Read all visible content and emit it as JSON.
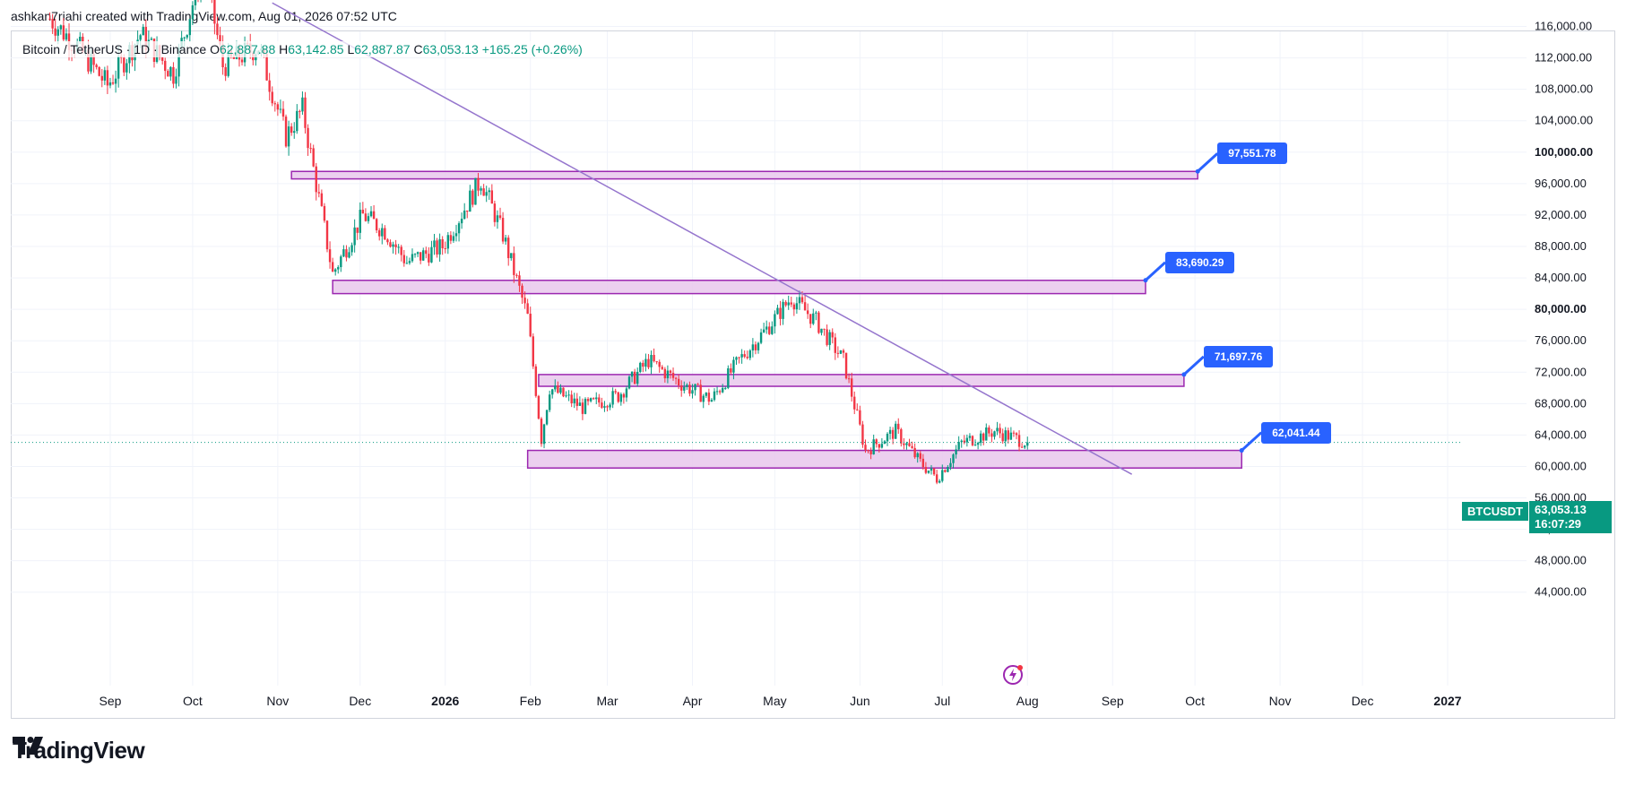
{
  "header": {
    "attribution": "ashkan7riahi created with TradingView.com, Aug 01, 2026 07:52 UTC"
  },
  "symbol": {
    "name": "Bitcoin / TetherUS · 1D · Binance",
    "open_label": "O",
    "open": "62,887.88",
    "high_label": "H",
    "high": "63,142.85",
    "low_label": "L",
    "low": "62,887.87",
    "close_label": "C",
    "close": "63,053.13",
    "change": "+165.25 (+0.26%)"
  },
  "badges": {
    "ticker": "BTCUSDT",
    "last_price": "63,053.13",
    "countdown": "16:07:29"
  },
  "branding": {
    "logo_text": "TradingView"
  },
  "colors": {
    "up": "#089981",
    "down": "#f23645",
    "zone_fill": "#e9c8ec",
    "zone_stroke": "#9c27b0",
    "trendline": "#9575cd",
    "label_bg": "#2962ff"
  },
  "chart_data": {
    "type": "candlestick",
    "y_axis": {
      "ticks": [
        44000,
        48000,
        52000,
        56000,
        60000,
        64000,
        68000,
        72000,
        76000,
        80000,
        84000,
        88000,
        92000,
        96000,
        100000,
        104000,
        108000,
        112000,
        116000
      ],
      "tick_labels": [
        "44,000.00",
        "48,000.00",
        "52,000.00",
        "56,000.00",
        "60,000.00",
        "64,000.00",
        "68,000.00",
        "72,000.00",
        "76,000.00",
        "80,000.00",
        "84,000.00",
        "88,000.00",
        "92,000.00",
        "96,000.00",
        "100,000.00",
        "104,000.00",
        "108,000.00",
        "112,000.00",
        "116,000.00"
      ],
      "bold_labels": [
        "80,000.00",
        "100,000.00"
      ],
      "range": [
        41500,
        118500
      ]
    },
    "x_axis": {
      "labels": [
        "Sep",
        "Oct",
        "Nov",
        "Dec",
        "2026",
        "Feb",
        "Mar",
        "Apr",
        "May",
        "Jun",
        "Jul",
        "Aug",
        "Sep",
        "Oct",
        "Nov",
        "Dec",
        "2027"
      ],
      "bold_labels": [
        "2026",
        "2027"
      ],
      "dates": [
        "2025-09-01",
        "2025-10-01",
        "2025-11-01",
        "2025-12-01",
        "2026-01-01",
        "2026-02-01",
        "2026-03-01",
        "2026-04-01",
        "2026-05-01",
        "2026-06-01",
        "2026-07-01",
        "2026-08-01",
        "2026-09-01",
        "2026-10-01",
        "2026-11-01",
        "2026-12-01",
        "2027-01-01"
      ]
    },
    "price_path": [
      {
        "date": "2025-08-10",
        "price": 117000
      },
      {
        "date": "2025-08-20",
        "price": 113500
      },
      {
        "date": "2025-08-31",
        "price": 108500
      },
      {
        "date": "2025-09-12",
        "price": 115000
      },
      {
        "date": "2025-09-24",
        "price": 110000
      },
      {
        "date": "2025-10-05",
        "price": 124000
      },
      {
        "date": "2025-10-12",
        "price": 111000
      },
      {
        "date": "2025-10-25",
        "price": 113500
      },
      {
        "date": "2025-11-04",
        "price": 102000
      },
      {
        "date": "2025-11-10",
        "price": 105500
      },
      {
        "date": "2025-11-21",
        "price": 84500
      },
      {
        "date": "2025-12-02",
        "price": 92000
      },
      {
        "date": "2025-12-10",
        "price": 90000
      },
      {
        "date": "2025-12-18",
        "price": 86000
      },
      {
        "date": "2025-12-31",
        "price": 88000
      },
      {
        "date": "2026-01-14",
        "price": 96500
      },
      {
        "date": "2026-01-22",
        "price": 89500
      },
      {
        "date": "2026-01-31",
        "price": 79000
      },
      {
        "date": "2026-02-05",
        "price": 63500
      },
      {
        "date": "2026-02-08",
        "price": 70000
      },
      {
        "date": "2026-02-20",
        "price": 67500
      },
      {
        "date": "2026-03-05",
        "price": 69000
      },
      {
        "date": "2026-03-16",
        "price": 73500
      },
      {
        "date": "2026-03-28",
        "price": 70500
      },
      {
        "date": "2026-04-08",
        "price": 68500
      },
      {
        "date": "2026-04-18",
        "price": 73500
      },
      {
        "date": "2026-04-28",
        "price": 77500
      },
      {
        "date": "2026-05-07",
        "price": 81500
      },
      {
        "date": "2026-05-16",
        "price": 78500
      },
      {
        "date": "2026-05-26",
        "price": 73500
      },
      {
        "date": "2026-06-03",
        "price": 62000
      },
      {
        "date": "2026-06-14",
        "price": 64500
      },
      {
        "date": "2026-06-23",
        "price": 60500
      },
      {
        "date": "2026-06-29",
        "price": 58500
      },
      {
        "date": "2026-07-08",
        "price": 63000
      },
      {
        "date": "2026-07-20",
        "price": 64500
      },
      {
        "date": "2026-08-01",
        "price": 63053.13
      }
    ],
    "last_price": 63053.13,
    "zones": [
      {
        "name": "zone-97551",
        "start": "2025-11-06",
        "end": "2026-10-02",
        "top": 97551.78,
        "bottom": 96600,
        "label": "97,551.78"
      },
      {
        "name": "zone-83690",
        "start": "2025-11-21",
        "end": "2026-09-13",
        "top": 83690.29,
        "bottom": 82000,
        "label": "83,690.29"
      },
      {
        "name": "zone-71697",
        "start": "2026-02-04",
        "end": "2026-09-27",
        "top": 71697.76,
        "bottom": 70200,
        "label": "71,697.76"
      },
      {
        "name": "zone-62041",
        "start": "2026-01-31",
        "end": "2026-10-18",
        "top": 62041.44,
        "bottom": 59800,
        "label": "62,041.44"
      }
    ],
    "trendline": {
      "start": {
        "date": "2025-10-30",
        "price": 119000
      },
      "end": {
        "date": "2026-09-08",
        "price": 59000
      }
    }
  }
}
